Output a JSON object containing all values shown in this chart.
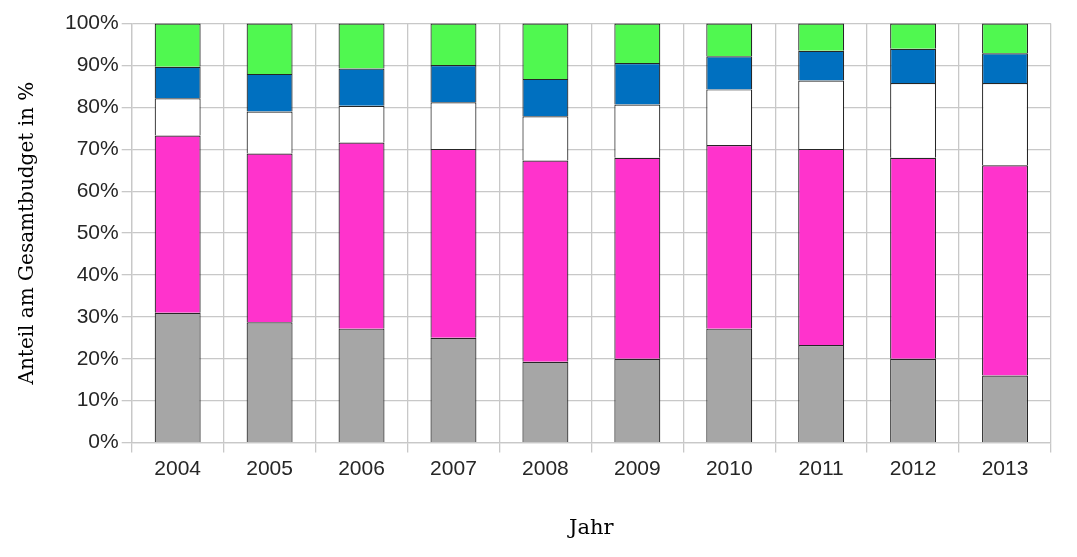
{
  "chart_data": {
    "type": "bar",
    "stacked": true,
    "xlabel": "Jahr",
    "ylabel": "Anteil am Gesamtbudget in %",
    "categories": [
      "2004",
      "2005",
      "2006",
      "2007",
      "2008",
      "2009",
      "2010",
      "2011",
      "2012",
      "2013"
    ],
    "series": [
      {
        "color": "#a6a6a6",
        "values": [
          31,
          28.7,
          27.2,
          25,
          19.3,
          20,
          27.2,
          23.3,
          20,
          16
        ]
      },
      {
        "color": "#ff33cc",
        "values": [
          42.3,
          40.3,
          44.4,
          45.1,
          48,
          48,
          43.8,
          46.8,
          48,
          50.2
        ]
      },
      {
        "color": "#ffffff",
        "values": [
          8.9,
          10,
          8.8,
          11.1,
          10.6,
          12.7,
          13.3,
          16.3,
          17.8,
          19.6
        ]
      },
      {
        "color": "#0070c0",
        "values": [
          7.5,
          9,
          8.9,
          8.9,
          8.9,
          9.9,
          7.9,
          7.1,
          8.2,
          7.1
        ]
      },
      {
        "color": "#50f850",
        "values": [
          10.3,
          12,
          10.7,
          9.9,
          13.2,
          9.4,
          7.8,
          6.5,
          6,
          7.1
        ]
      }
    ],
    "ylim": [
      0,
      100
    ],
    "yticks": [
      {
        "value": 0,
        "label": "0%"
      },
      {
        "value": 10,
        "label": "10%"
      },
      {
        "value": 20,
        "label": "20%"
      },
      {
        "value": 30,
        "label": "30%"
      },
      {
        "value": 40,
        "label": "40%"
      },
      {
        "value": 50,
        "label": "50%"
      },
      {
        "value": 60,
        "label": "60%"
      },
      {
        "value": 70,
        "label": "70%"
      },
      {
        "value": 80,
        "label": "80%"
      },
      {
        "value": 90,
        "label": "90%"
      },
      {
        "value": 100,
        "label": "100%"
      }
    ],
    "grid": true,
    "legend": false
  }
}
